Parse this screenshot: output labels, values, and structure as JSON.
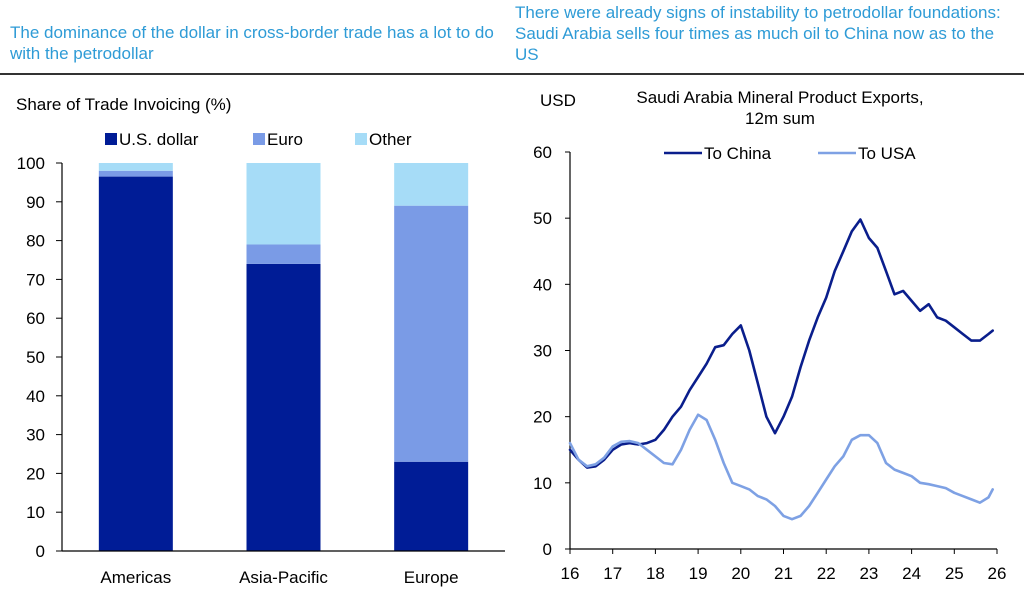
{
  "headlines": {
    "left": "The dominance of the dollar in cross-border trade has a lot to do with the petrodollar",
    "right": "There were already signs of instability to petrodollar foundations: Saudi Arabia sells four times as much oil to China now as to the US"
  },
  "colors": {
    "usd": "#001c96",
    "euro": "#7a9be6",
    "other": "#a6dcf7",
    "china": "#0a1e8c",
    "usa": "#7ea1e4",
    "headline": "#2e9bd6"
  },
  "chart_data": [
    {
      "type": "bar",
      "stacked": true,
      "title": "Share of Trade Invoicing (%)",
      "categories": [
        "Americas",
        "Asia-Pacific",
        "Europe"
      ],
      "series": [
        {
          "name": "U.S. dollar",
          "values": [
            96.5,
            74,
            23
          ]
        },
        {
          "name": "Euro",
          "values": [
            1.5,
            5,
            66
          ]
        },
        {
          "name": "Other",
          "values": [
            2,
            21,
            11
          ]
        }
      ],
      "ylim": [
        0,
        100
      ],
      "yticks": [
        "0",
        "10",
        "20",
        "30",
        "40",
        "50",
        "60",
        "70",
        "80",
        "90",
        "100"
      ],
      "legend": "top"
    },
    {
      "type": "line",
      "title": "Saudi Arabia Mineral Product Exports,",
      "subtitle": "12m sum",
      "ylabel": "USD",
      "ylim": [
        0,
        60
      ],
      "xlim": [
        16,
        26
      ],
      "yticks": [
        "0",
        "10",
        "20",
        "30",
        "40",
        "50",
        "60"
      ],
      "xticks": [
        "16",
        "17",
        "18",
        "19",
        "20",
        "21",
        "22",
        "23",
        "24",
        "25",
        "26"
      ],
      "legend": "top",
      "x": [
        16.0,
        16.2,
        16.4,
        16.6,
        16.8,
        17.0,
        17.2,
        17.4,
        17.6,
        17.8,
        18.0,
        18.2,
        18.4,
        18.6,
        18.8,
        19.0,
        19.2,
        19.4,
        19.6,
        19.8,
        20.0,
        20.2,
        20.4,
        20.6,
        20.8,
        21.0,
        21.2,
        21.4,
        21.6,
        21.8,
        22.0,
        22.2,
        22.4,
        22.6,
        22.8,
        23.0,
        23.2,
        23.4,
        23.6,
        23.8,
        24.0,
        24.2,
        24.4,
        24.6,
        24.8,
        25.0,
        25.2,
        25.4,
        25.6,
        25.8,
        25.9
      ],
      "series": [
        {
          "name": "To China",
          "values": [
            15,
            13.5,
            12.3,
            12.5,
            13.5,
            15,
            15.8,
            16,
            15.8,
            16,
            16.5,
            18,
            20,
            21.5,
            24,
            26,
            28,
            30.5,
            30.8,
            32.5,
            33.8,
            30,
            25,
            20,
            17.5,
            20,
            23,
            27.5,
            31.5,
            35,
            38,
            42,
            45,
            48,
            49.8,
            47,
            45.5,
            42,
            38.5,
            39,
            37.5,
            36,
            37,
            35,
            34.5,
            33.5,
            32.5,
            31.5,
            31.5,
            32.5,
            33
          ]
        },
        {
          "name": "To USA",
          "values": [
            16,
            13.5,
            12.5,
            12.8,
            13.8,
            15.5,
            16.2,
            16.3,
            16,
            15,
            14,
            13,
            12.8,
            15,
            18,
            20.3,
            19.5,
            16.5,
            13,
            10,
            9.5,
            9,
            8,
            7.5,
            6.5,
            5,
            4.5,
            5,
            6.5,
            8.5,
            10.5,
            12.5,
            14,
            16.5,
            17.2,
            17.2,
            16,
            13,
            12,
            11.5,
            11,
            10,
            9.8,
            9.5,
            9.2,
            8.5,
            8,
            7.5,
            7,
            7.8,
            9
          ]
        }
      ]
    }
  ]
}
